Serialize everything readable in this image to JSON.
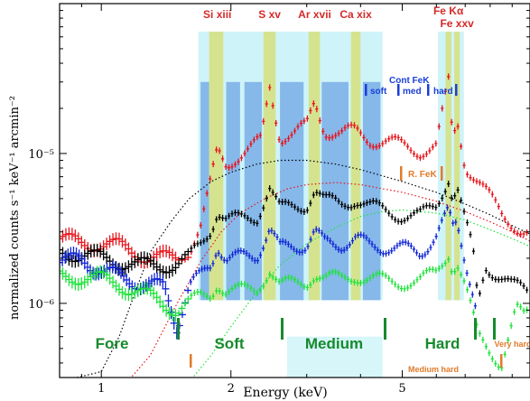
{
  "chart_data": {
    "type": "scatter",
    "xlabel": "Energy (keV)",
    "ylabel": "normalized counts s⁻¹ keV⁻¹ arcmin⁻²",
    "x_scale": "log",
    "y_scale": "log",
    "xlim": [
      0.8,
      9.9
    ],
    "ylim": [
      3.2e-07,
      0.0001
    ],
    "x_ticks": [
      {
        "value": 1,
        "label": "1"
      },
      {
        "value": 2,
        "label": "2"
      },
      {
        "value": 5,
        "label": "5"
      }
    ],
    "y_ticks": [
      {
        "value": 1e-06,
        "label": "10⁻⁶"
      },
      {
        "value": 1e-05,
        "label": "10⁻⁵"
      }
    ],
    "line_labels": [
      {
        "text": "Si xiii",
        "energy": 1.86
      },
      {
        "text": "S xv",
        "energy": 2.46
      },
      {
        "text": "Ar xvii",
        "energy": 3.13
      },
      {
        "text": "Ca xix",
        "energy": 3.9
      },
      {
        "text": "Fe Kα",
        "energy": 6.4
      },
      {
        "text": "Fe xxv",
        "energy": 6.7
      }
    ],
    "line_bands": [
      [
        1.78,
        1.92
      ],
      [
        2.38,
        2.54
      ],
      [
        3.03,
        3.22
      ],
      [
        3.8,
        4.0
      ],
      [
        6.3,
        6.5
      ],
      [
        6.6,
        6.8
      ]
    ],
    "energy_bands": [
      {
        "name": "Fore",
        "range": [
          0.8,
          1.5
        ]
      },
      {
        "name": "Soft",
        "range": [
          1.5,
          2.7
        ]
      },
      {
        "name": "Medium",
        "range": [
          2.7,
          4.5
        ]
      },
      {
        "name": "Hard",
        "range": [
          5.3,
          7.5
        ]
      },
      {
        "name": "Very hard",
        "range": [
          7.5,
          9.9
        ]
      },
      {
        "name": "Medium hard",
        "range": [
          4.5,
          5.3
        ]
      }
    ],
    "cont_fek": {
      "title": "Cont FeK",
      "labels": [
        "soft",
        "med",
        "hard"
      ],
      "r_fek_label": "R. FeK"
    },
    "series": [
      {
        "color": "#e8141b",
        "points": [
          [
            0.8,
            2.7e-06
          ],
          [
            0.9,
            2.5e-06
          ],
          [
            1.0,
            2.5e-06
          ],
          [
            1.1,
            2.4e-06
          ],
          [
            1.2,
            2.2e-06
          ],
          [
            1.3,
            2e-06
          ],
          [
            1.4,
            2e-06
          ],
          [
            1.5,
            2e-06
          ],
          [
            1.6,
            2.3e-06
          ],
          [
            1.7,
            3.2e-06
          ],
          [
            1.8,
            6.5e-06
          ],
          [
            1.86,
            1.05e-05
          ],
          [
            1.95,
            8.5e-06
          ],
          [
            2.05,
            9.5e-06
          ],
          [
            2.2,
            1.05e-05
          ],
          [
            2.35,
            1.2e-05
          ],
          [
            2.46,
            2.8e-05
          ],
          [
            2.6,
            1.3e-05
          ],
          [
            2.8,
            1.35e-05
          ],
          [
            3.0,
            1.5e-05
          ],
          [
            3.13,
            2.2e-05
          ],
          [
            3.3,
            1.45e-05
          ],
          [
            3.6,
            1.35e-05
          ],
          [
            3.9,
            1.4e-05
          ],
          [
            4.2,
            1.25e-05
          ],
          [
            4.6,
            1.2e-05
          ],
          [
            5.0,
            1.12e-05
          ],
          [
            5.5,
            1.05e-05
          ],
          [
            6.0,
            1.1e-05
          ],
          [
            6.4,
            3e-05
          ],
          [
            6.55,
            1.2e-05
          ],
          [
            6.7,
            1.7e-05
          ],
          [
            7.0,
            8.5e-06
          ],
          [
            7.5,
            6.5e-06
          ],
          [
            8.0,
            5e-06
          ],
          [
            8.5,
            4e-06
          ],
          [
            9.0,
            3.5e-06
          ],
          [
            9.5,
            3e-06
          ],
          [
            9.9,
            2.8e-06
          ]
        ]
      },
      {
        "color": "#000000",
        "points": [
          [
            0.8,
            2.2e-06
          ],
          [
            0.9,
            2.1e-06
          ],
          [
            1.0,
            2e-06
          ],
          [
            1.1,
            1.9e-06
          ],
          [
            1.2,
            1.8e-06
          ],
          [
            1.3,
            1.8e-06
          ],
          [
            1.4,
            1.8e-06
          ],
          [
            1.5,
            1.8e-06
          ],
          [
            1.6,
            2e-06
          ],
          [
            1.7,
            2.5e-06
          ],
          [
            1.8,
            3.2e-06
          ],
          [
            1.86,
            4.2e-06
          ],
          [
            1.95,
            3.6e-06
          ],
          [
            2.1,
            3.6e-06
          ],
          [
            2.3,
            3.8e-06
          ],
          [
            2.46,
            6e-06
          ],
          [
            2.6,
            4.2e-06
          ],
          [
            2.8,
            4.4e-06
          ],
          [
            3.0,
            4.6e-06
          ],
          [
            3.13,
            5.8e-06
          ],
          [
            3.3,
            4.8e-06
          ],
          [
            3.6,
            4.6e-06
          ],
          [
            3.9,
            5e-06
          ],
          [
            4.2,
            4.4e-06
          ],
          [
            4.6,
            4.1e-06
          ],
          [
            5.0,
            3.9e-06
          ],
          [
            5.5,
            3.8e-06
          ],
          [
            6.0,
            4.5e-06
          ],
          [
            6.4,
            7e-06
          ],
          [
            6.55,
            5e-06
          ],
          [
            6.7,
            6e-06
          ],
          [
            7.0,
            3.5e-06
          ],
          [
            7.3,
            2.2e-06
          ],
          [
            7.5,
            1e-06
          ],
          [
            7.8,
            1.8e-06
          ],
          [
            8.5,
            1.5e-06
          ],
          [
            9.0,
            1.3e-06
          ],
          [
            9.5,
            1.25e-06
          ],
          [
            9.9,
            1.2e-06
          ]
        ]
      },
      {
        "color": "#1227d6",
        "points": [
          [
            0.8,
            2e-06
          ],
          [
            0.9,
            1.9e-06
          ],
          [
            1.0,
            1.7e-06
          ],
          [
            1.1,
            1.5e-06
          ],
          [
            1.2,
            1.4e-06
          ],
          [
            1.3,
            1.3e-06
          ],
          [
            1.4,
            1.3e-06
          ],
          [
            1.5,
            7e-07
          ],
          [
            1.6,
            1.3e-06
          ],
          [
            1.7,
            1.5e-06
          ],
          [
            1.8,
            1.8e-06
          ],
          [
            1.86,
            2.5e-06
          ],
          [
            1.95,
            2e-06
          ],
          [
            2.1,
            2e-06
          ],
          [
            2.3,
            2.1e-06
          ],
          [
            2.46,
            3.2e-06
          ],
          [
            2.6,
            2.3e-06
          ],
          [
            2.8,
            2.4e-06
          ],
          [
            3.0,
            2.5e-06
          ],
          [
            3.13,
            3e-06
          ],
          [
            3.3,
            2.5e-06
          ],
          [
            3.6,
            2.5e-06
          ],
          [
            3.9,
            2.7e-06
          ],
          [
            4.2,
            2.4e-06
          ],
          [
            4.6,
            2.4e-06
          ],
          [
            5.0,
            2.3e-06
          ],
          [
            5.5,
            2.2e-06
          ],
          [
            6.0,
            2.8e-06
          ],
          [
            6.4,
            4e-06
          ],
          [
            6.55,
            3.2e-06
          ],
          [
            6.7,
            3.5e-06
          ],
          [
            7.0,
            2e-06
          ],
          [
            7.3,
            1.2e-06
          ],
          [
            7.5,
            8e-07
          ]
        ]
      },
      {
        "color": "#1ee33a",
        "points": [
          [
            0.8,
            1.5e-06
          ],
          [
            0.9,
            1.5e-06
          ],
          [
            1.0,
            1.45e-06
          ],
          [
            1.1,
            1.35e-06
          ],
          [
            1.2,
            1.2e-06
          ],
          [
            1.3,
            1.1e-06
          ],
          [
            1.4,
            1e-06
          ],
          [
            1.5,
            9e-07
          ],
          [
            1.6,
            1e-06
          ],
          [
            1.7,
            1.1e-06
          ],
          [
            1.8,
            1.15e-06
          ],
          [
            1.86,
            1.4e-06
          ],
          [
            1.95,
            1.2e-06
          ],
          [
            2.1,
            1.2e-06
          ],
          [
            2.3,
            1.25e-06
          ],
          [
            2.46,
            1.7e-06
          ],
          [
            2.6,
            1.3e-06
          ],
          [
            2.8,
            1.35e-06
          ],
          [
            3.0,
            1.4e-06
          ],
          [
            3.13,
            1.6e-06
          ],
          [
            3.3,
            1.45e-06
          ],
          [
            3.6,
            1.45e-06
          ],
          [
            3.9,
            1.55e-06
          ],
          [
            4.2,
            1.45e-06
          ],
          [
            4.6,
            1.4e-06
          ],
          [
            5.0,
            1.4e-06
          ],
          [
            5.5,
            1.4e-06
          ],
          [
            6.0,
            1.6e-06
          ],
          [
            6.4,
            2.2e-06
          ],
          [
            6.55,
            1.7e-06
          ],
          [
            6.7,
            1.9e-06
          ],
          [
            7.0,
            1.3e-06
          ],
          [
            7.3,
            8e-07
          ],
          [
            7.5,
            6e-07
          ],
          [
            8.5,
            4e-07
          ],
          [
            9.2,
            9e-07
          ],
          [
            9.6,
            8e-07
          ],
          [
            9.9,
            9e-07
          ]
        ]
      }
    ],
    "models": [
      {
        "color": "#000000",
        "points": [
          [
            0.8,
            3e-07
          ],
          [
            1.0,
            3.5e-07
          ],
          [
            1.1,
            6e-07
          ],
          [
            1.2,
            1.2e-06
          ],
          [
            1.3,
            2.2e-06
          ],
          [
            1.45,
            3.5e-06
          ],
          [
            1.6,
            5e-06
          ],
          [
            1.8,
            6.5e-06
          ],
          [
            2.0,
            7.5e-06
          ],
          [
            2.3,
            8.5e-06
          ],
          [
            2.6,
            9e-06
          ],
          [
            3.0,
            9e-06
          ],
          [
            3.5,
            8.5e-06
          ],
          [
            4.0,
            7.8e-06
          ],
          [
            5.0,
            6.5e-06
          ],
          [
            6.0,
            5.5e-06
          ],
          [
            7.0,
            4.6e-06
          ],
          [
            8.0,
            3.9e-06
          ],
          [
            9.0,
            3.3e-06
          ],
          [
            9.9,
            2.9e-06
          ]
        ]
      },
      {
        "color": "#e8141b",
        "points": [
          [
            1.15,
            3e-07
          ],
          [
            1.3,
            4.5e-07
          ],
          [
            1.5,
            1e-06
          ],
          [
            1.7,
            1.9e-06
          ],
          [
            1.9,
            3e-06
          ],
          [
            2.1,
            4e-06
          ],
          [
            2.4,
            5e-06
          ],
          [
            2.7,
            5.8e-06
          ],
          [
            3.0,
            6.2e-06
          ],
          [
            3.5,
            6.4e-06
          ],
          [
            4.0,
            6.2e-06
          ],
          [
            5.0,
            5.5e-06
          ],
          [
            6.0,
            4.8e-06
          ],
          [
            7.0,
            4.1e-06
          ],
          [
            8.0,
            3.5e-06
          ],
          [
            9.0,
            3e-06
          ],
          [
            9.9,
            2.6e-06
          ]
        ]
      },
      {
        "color": "#1ee33a",
        "points": [
          [
            1.6,
            3e-07
          ],
          [
            1.8,
            4.5e-07
          ],
          [
            2.0,
            7e-07
          ],
          [
            2.3,
            1.2e-06
          ],
          [
            2.6,
            1.8e-06
          ],
          [
            3.0,
            2.5e-06
          ],
          [
            3.5,
            3.2e-06
          ],
          [
            4.0,
            3.8e-06
          ],
          [
            4.5,
            4.1e-06
          ],
          [
            5.0,
            4.2e-06
          ],
          [
            6.0,
            4e-06
          ],
          [
            7.0,
            3.6e-06
          ],
          [
            8.0,
            3.1e-06
          ],
          [
            9.0,
            2.7e-06
          ],
          [
            9.9,
            2.4e-06
          ]
        ]
      }
    ],
    "grid": false
  },
  "colors": {
    "soft_band": "#2f6fd8",
    "medium_band": "#bdf0f7",
    "line_band": "#d6df7d",
    "band_label": "#168a2c",
    "line_label": "#d42a2a",
    "cont_label": "#1a3fd8",
    "rfek": "#e07b2a"
  }
}
